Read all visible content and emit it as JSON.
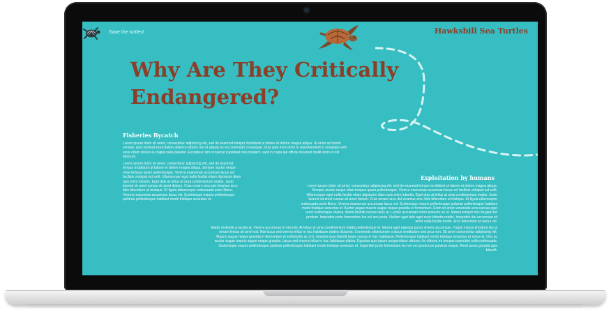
{
  "site": {
    "tagline": "Save the turtles!",
    "brand": "Hawksbill Sea Turtles",
    "icons": [
      "turtle-logo-icon",
      "turtle-illustration",
      "dashed-swim-path"
    ],
    "colors": {
      "background": "#37bec2",
      "accent": "#8b3e28",
      "text": "#ffffff"
    }
  },
  "hero": {
    "headline_line1": "Why Are They Critically",
    "headline_line2": "Endangered?"
  },
  "sections": {
    "fisheries": {
      "heading": "Fisheries Bycatch",
      "para1": "Lorem ipsum dolor sit amet, consectetur adipiscing elit, sed do eiusmod tempor incididunt ut labore et dolore magna aliqua. Ut enim ad minim veniam, quis nostrud exercitation ullamco laboris nisi ut aliquip ex ea commodo consequat. Duis aute irure dolor in reprehenderit in voluptate velit esse cillum dolore eu fugiat nulla pariatur. Excepteur sint occaecat cupidatat non proident, sunt in culpa qui officia deserunt mollit anim id est laborum.",
      "para2": "Lorem ipsum dolor sit amet, consectetur adipiscing elit, sed do eiusmod tempor incididunt ut labore et dolore magna aliqua. Semper auctor neque vitae tempus quam pellentesque. Viverra maecenas accumsan lacus vel facilisis volutpat est velit. Ullamcorper eget nulla facilisi etiam dignissim diam quis enim lobortis. Eget duis at tellus at urna condimentum mattis. Justo laoreet sit amet cursus sit amet dictum. Cras ornare arcu dui vivamus arcu felis bibendum ut tristique. Et ligula ullamcorper malesuada proin libero. Viverra maecenas accumsan lacus vel. Scelerisque mauris pellentesque pulvinar pellentesque habitant morbi tristique senectus et."
    },
    "exploitation": {
      "heading": "Exploitation by humans",
      "para1": "Lorem ipsum dolor sit amet, consectetur adipiscing elit, sed do eiusmod tempor incididunt ut labore et dolore magna aliqua. Semper auctor neque vitae tempus quam pellentesque. Viverra maecenas accumsan lacus vel facilisis volutpat est velit. Ullamcorper eget nulla facilisi etiam dignissim diam quis enim lobortis. Eget duis at tellus at urna condimentum mattis. Justo laoreet sit amet cursus sit amet dictum. Cras ornare arcu dui vivamus arcu felis bibendum ut tristique. Et ligula ullamcorper malesuada proin libero. Viverra maecenas accumsan lacus vel. Scelerisque mauris pellentesque pulvinar pellentesque habitant morbi tristique senectus et. Auctor augue mauris augue neque gravida in fermentum. Enim sit amet venenatis urna cursus eget nunc scelerisque viverra. Morbi blandit cursus risus at. Luctus accumsan tortor posuere ac ut. Massa tempor nec feugiat nisl pretium. Imperdiet proin fermentum leo vel orci porta. Nullam eget felis eget nunc lobortis mattis. Imperdiet dui accumsan sit amet nulla facilisi morbi. Arcu bibendum at varius vel.",
      "para2": "Mattis molestie a iaculis at. Viverra accumsan in nisl nisi. At tellus at urna condimentum mattis pellentesque id. Massa eget egestas purus viverra accumsan. Turpis massa tincidunt dui ut ornare lectus sit amet est. Nisi lacus sed viverra tellus in hac habitasse platea dictumst. Commodo ullamcorper a lacus vestibulum sed arcu non. Sit amet consectetur adipiscing elit. Mauris augue neque gravida in fermentum et sollicitudin ac orci. Gravida quis blandit turpis cursus in hac habitasse. Pellentesque habitant morbi tristique senectus et netus et. Orci ac auctor augue mauris augue neque gravida. Lacus sed viverra tellus in hac habitasse platea. Egestas quis ipsum suspendisse ultrices. Ac ultrices mi tempus imperdiet nulla malesuada. Scelerisque mauris pellentesque pulvinar pellentesque habitant morbi tristique senectus et. Imperdiet proin fermentum leo vel orci porta non pulvinar neque. Amet purus gravida quis blandit."
    }
  }
}
